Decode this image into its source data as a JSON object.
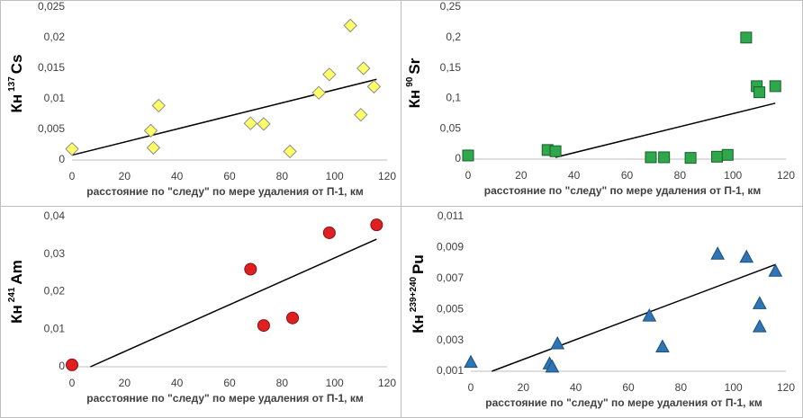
{
  "chart_data": [
    {
      "type": "scatter",
      "marker": "diamond",
      "color": "#ffff66",
      "ylabel": {
        "base": "Кн",
        "sup": "137",
        "element": "Cs"
      },
      "xlabel": "расстояние по \"следу\" по мере удаления от П-1, км",
      "x": [
        0,
        30,
        31,
        33,
        68,
        73,
        83,
        94,
        98,
        106,
        110,
        111,
        115
      ],
      "values": [
        0.0018,
        0.0048,
        0.002,
        0.0089,
        0.006,
        0.0059,
        0.0014,
        0.011,
        0.014,
        0.022,
        0.0074,
        0.015,
        0.012
      ],
      "trend": {
        "x": [
          0,
          116
        ],
        "y": [
          0.0008,
          0.0132
        ]
      },
      "xlim": [
        0,
        120
      ],
      "xticks": [
        0,
        20,
        40,
        60,
        80,
        100,
        120
      ],
      "ylim": [
        0,
        0.025
      ],
      "yticks": [
        0,
        {
          "value": 0.005,
          "label": "0,005"
        },
        {
          "value": 0.01,
          "label": "0,01"
        },
        {
          "value": 0.015,
          "label": "0,015"
        },
        {
          "value": 0.02,
          "label": "0,02"
        },
        {
          "value": 0.025,
          "label": "0,025"
        }
      ]
    },
    {
      "type": "scatter",
      "marker": "square",
      "color": "#2ea84a",
      "ylabel": {
        "base": "Кн",
        "sup": "90",
        "element": "Sr"
      },
      "xlabel": "расстояние по \"следу\" по мере удаления от П-1, км",
      "x": [
        0,
        30,
        33,
        69,
        74,
        84,
        94,
        98,
        105,
        109,
        110,
        116
      ],
      "values": [
        0.006,
        0.015,
        0.013,
        0.003,
        0.003,
        0.002,
        0.004,
        0.007,
        0.2,
        0.12,
        0.11,
        0.12
      ],
      "trend": {
        "x": [
          33,
          116
        ],
        "y": [
          0.003,
          0.092
        ]
      },
      "xlim": [
        0,
        120
      ],
      "xticks": [
        0,
        20,
        40,
        60,
        80,
        100,
        120
      ],
      "ylim": [
        0,
        0.25
      ],
      "yticks": [
        0,
        {
          "value": 0.05,
          "label": "0,05"
        },
        {
          "value": 0.1,
          "label": "0,1"
        },
        {
          "value": 0.15,
          "label": "0,15"
        },
        {
          "value": 0.2,
          "label": "0,2"
        },
        {
          "value": 0.25,
          "label": "0,25"
        }
      ]
    },
    {
      "type": "scatter",
      "marker": "circle",
      "color": "#e02020",
      "ylabel": {
        "base": "Кн",
        "sup": "241",
        "element": "Am"
      },
      "xlabel": "расстояние по \"следу\" по мере удаления от П-1, км",
      "x": [
        0,
        68,
        73,
        84,
        98,
        116
      ],
      "values": [
        0.0005,
        0.026,
        0.011,
        0.013,
        0.0357,
        0.0378
      ],
      "trend": {
        "x": [
          7,
          116
        ],
        "y": [
          0,
          0.034
        ]
      },
      "xlim": [
        0,
        120
      ],
      "xticks": [
        0,
        20,
        40,
        60,
        80,
        100,
        120
      ],
      "ylim": [
        0,
        0.04
      ],
      "yticks": [
        0,
        {
          "value": 0.01,
          "label": "0,01"
        },
        {
          "value": 0.02,
          "label": "0,02"
        },
        {
          "value": 0.03,
          "label": "0,03"
        },
        {
          "value": 0.04,
          "label": "0,04"
        }
      ]
    },
    {
      "type": "scatter",
      "marker": "triangle",
      "color": "#2e75b6",
      "ylabel": {
        "base": "Кн",
        "sup": "239+240",
        "element": "Pu"
      },
      "xlabel": "расстояние по \"следу\" по мере удаления от П-1, км",
      "x": [
        0,
        30,
        31,
        33,
        68,
        73,
        94,
        105,
        110,
        110,
        116
      ],
      "values": [
        0.0016,
        0.0015,
        0.0013,
        0.0028,
        0.0046,
        0.0026,
        0.0086,
        0.0084,
        0.0054,
        0.0039,
        0.0075
      ],
      "trend": {
        "x": [
          8,
          116
        ],
        "y": [
          0.001,
          0.0079
        ]
      },
      "xlim": [
        0,
        120
      ],
      "xticks": [
        0,
        20,
        40,
        60,
        80,
        100,
        120
      ],
      "ylim": [
        0.001,
        0.011
      ],
      "yticks": [
        {
          "value": 0.001,
          "label": "0,001"
        },
        {
          "value": 0.003,
          "label": "0,003"
        },
        {
          "value": 0.005,
          "label": "0,005"
        },
        {
          "value": 0.007,
          "label": "0,007"
        },
        {
          "value": 0.009,
          "label": "0,009"
        },
        {
          "value": 0.011,
          "label": "0,011"
        }
      ]
    }
  ]
}
